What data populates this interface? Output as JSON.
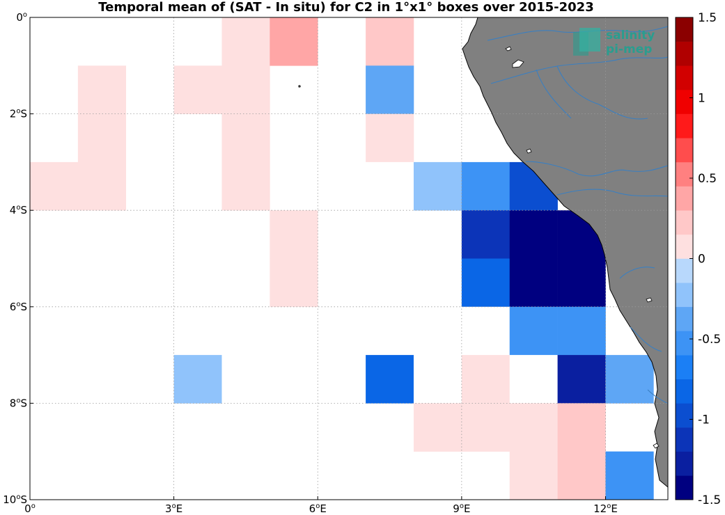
{
  "title": "Temporal mean of (SAT - In situ) for C2 in 1°x1° boxes over 2015-2023",
  "logo": {
    "line1": "salinity",
    "line2": "pi-mep"
  },
  "colors": {
    "land": "#808080",
    "river": "#3a7fc1",
    "grid": "#9a9a9a",
    "frame": "#000000"
  },
  "chart_data": {
    "type": "heatmap",
    "title": "Temporal mean of (SAT - In situ) for C2 in 1°x1° boxes over 2015-2023",
    "x_ticks": [
      {
        "value": 0,
        "label": "0",
        "sup": "o",
        "hem": ""
      },
      {
        "value": 3,
        "label": "3",
        "sup": "o",
        "hem": "E"
      },
      {
        "value": 6,
        "label": "6",
        "sup": "o",
        "hem": "E"
      },
      {
        "value": 9,
        "label": "9",
        "sup": "o",
        "hem": "E"
      },
      {
        "value": 12,
        "label": "12",
        "sup": "o",
        "hem": "E"
      }
    ],
    "y_ticks": [
      {
        "value": 0,
        "label": "0",
        "sup": "o",
        "hem": ""
      },
      {
        "value": -2,
        "label": "2",
        "sup": "o",
        "hem": "S"
      },
      {
        "value": -4,
        "label": "4",
        "sup": "o",
        "hem": "S"
      },
      {
        "value": -6,
        "label": "6",
        "sup": "o",
        "hem": "S"
      },
      {
        "value": -8,
        "label": "8",
        "sup": "o",
        "hem": "S"
      },
      {
        "value": -10,
        "label": "10",
        "sup": "o",
        "hem": "S"
      }
    ],
    "xlim": [
      0,
      13.3
    ],
    "ylim": [
      -10,
      0
    ],
    "colorbar": {
      "range": [
        -1.5,
        1.5
      ],
      "levels": 20,
      "colors": [
        "#000080",
        "#0a1fa0",
        "#0c34b8",
        "#0b4ed0",
        "#0a66e6",
        "#1b7ff5",
        "#3d93f5",
        "#5ea6f5",
        "#90c3fb",
        "#b8d8fc",
        "#fee0e0",
        "#ffc8c8",
        "#ffa6a6",
        "#ff8080",
        "#ff4d4d",
        "#ff1a1a",
        "#f00000",
        "#d20000",
        "#b00000",
        "#8b0000"
      ],
      "ticks": [
        {
          "value": 1.5,
          "label": "1.5"
        },
        {
          "value": 1,
          "label": "1"
        },
        {
          "value": 0.5,
          "label": "0.5"
        },
        {
          "value": 0,
          "label": "0"
        },
        {
          "value": -0.5,
          "label": "-0.5"
        },
        {
          "value": -1,
          "label": "-1"
        },
        {
          "value": -1.5,
          "label": "-1.5"
        }
      ]
    },
    "cells": [
      {
        "lon": 0,
        "lat": -3,
        "value": 0.12
      },
      {
        "lon": 0,
        "lat": -1,
        "value": -0.05
      },
      {
        "lon": 1,
        "lat": -1,
        "value": 0.12
      },
      {
        "lon": 1,
        "lat": -2,
        "value": 0.12
      },
      {
        "lon": 1,
        "lat": -3,
        "value": 0.12
      },
      {
        "lon": 1,
        "lat": -6,
        "value": -0.05
      },
      {
        "lon": 2,
        "lat": -6,
        "value": -0.05
      },
      {
        "lon": 1,
        "lat": -9,
        "value": -0.05
      },
      {
        "lon": 3,
        "lat": -1,
        "value": 0.12
      },
      {
        "lon": 4,
        "lat": -1,
        "value": 0.12
      },
      {
        "lon": 4,
        "lat": 0,
        "value": 0.12
      },
      {
        "lon": 4,
        "lat": -2,
        "value": 0.12
      },
      {
        "lon": 4,
        "lat": -3,
        "value": 0.12
      },
      {
        "lon": 5,
        "lat": 0,
        "value": 0.38
      },
      {
        "lon": 5,
        "lat": -4,
        "value": 0.12
      },
      {
        "lon": 5,
        "lat": -5,
        "value": 0.12
      },
      {
        "lon": 3,
        "lat": -7,
        "value": -0.2
      },
      {
        "lon": 4,
        "lat": -6,
        "value": -0.05
      },
      {
        "lon": 4,
        "lat": -7,
        "value": -0.05
      },
      {
        "lon": 6,
        "lat": -3,
        "value": -0.05
      },
      {
        "lon": 7,
        "lat": 0,
        "value": 0.25
      },
      {
        "lon": 7,
        "lat": -1,
        "value": -0.35
      },
      {
        "lon": 7,
        "lat": -2,
        "value": 0.12
      },
      {
        "lon": 7,
        "lat": -3,
        "value": -0.05
      },
      {
        "lon": 7,
        "lat": -4,
        "value": -0.05
      },
      {
        "lon": 7,
        "lat": -7,
        "value": -0.8
      },
      {
        "lon": 8,
        "lat": -3,
        "value": -0.2
      },
      {
        "lon": 8,
        "lat": -7,
        "value": -0.05
      },
      {
        "lon": 8,
        "lat": -8,
        "value": 0.12
      },
      {
        "lon": 9,
        "lat": -3,
        "value": -0.6
      },
      {
        "lon": 9,
        "lat": -4,
        "value": -1.2
      },
      {
        "lon": 9,
        "lat": -5,
        "value": -0.8
      },
      {
        "lon": 9,
        "lat": -6,
        "value": -0.05
      },
      {
        "lon": 9,
        "lat": -7,
        "value": 0.12
      },
      {
        "lon": 9,
        "lat": -8,
        "value": 0.12
      },
      {
        "lon": 10,
        "lat": -3,
        "value": -1.05
      },
      {
        "lon": 10,
        "lat": -4,
        "value": -1.5
      },
      {
        "lon": 10,
        "lat": -5,
        "value": -1.5
      },
      {
        "lon": 10,
        "lat": -6,
        "value": -0.6
      },
      {
        "lon": 10,
        "lat": -7,
        "value": -0.05
      },
      {
        "lon": 10,
        "lat": -8,
        "value": 0.12
      },
      {
        "lon": 10,
        "lat": -9,
        "value": 0.12
      },
      {
        "lon": 11,
        "lat": -4,
        "value": -1.5
      },
      {
        "lon": 11,
        "lat": -5,
        "value": -1.5
      },
      {
        "lon": 11,
        "lat": -6,
        "value": -0.6
      },
      {
        "lon": 11,
        "lat": -7,
        "value": -1.3
      },
      {
        "lon": 11,
        "lat": -8,
        "value": 0.25
      },
      {
        "lon": 11,
        "lat": -9,
        "value": 0.25
      },
      {
        "lon": 12,
        "lat": -7,
        "value": -0.35
      },
      {
        "lon": 12,
        "lat": -9,
        "value": -0.5
      }
    ]
  }
}
